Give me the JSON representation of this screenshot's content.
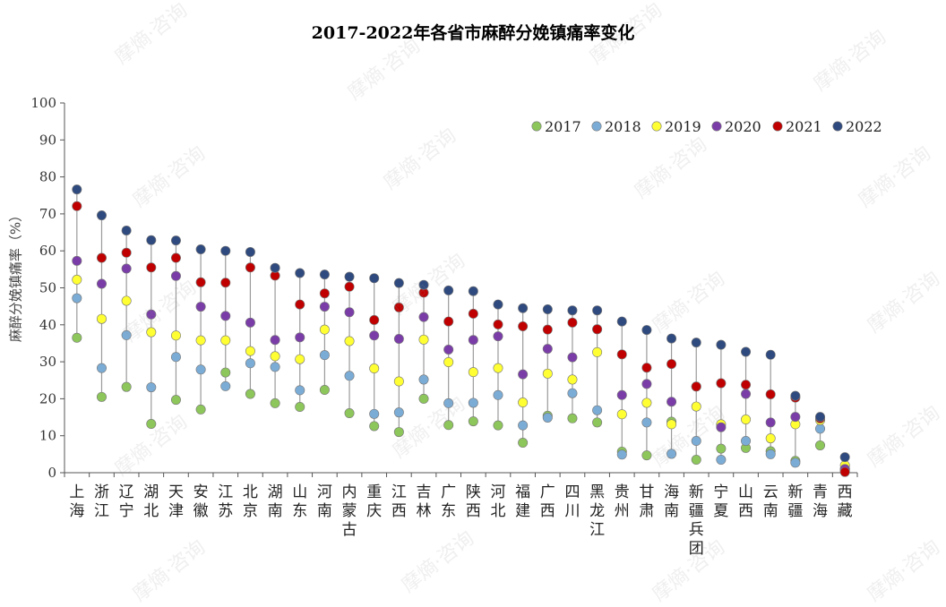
{
  "watermark": "摩熵·咨询",
  "chart_data": {
    "type": "scatter",
    "title": "2017-2022年各省市麻醉分娩镇痛率变化",
    "ylabel": "麻醉分娩镇痛率（%）",
    "ylim": [
      0,
      100
    ],
    "yticks": [
      0,
      10,
      20,
      30,
      40,
      50,
      60,
      70,
      80,
      90,
      100
    ],
    "grid": false,
    "legend_position": "top-right",
    "categories": [
      "上海",
      "浙江",
      "辽宁",
      "湖北",
      "天津",
      "安徽",
      "江苏",
      "北京",
      "湖南",
      "山东",
      "河南",
      "内蒙古",
      "重庆",
      "江西",
      "吉林",
      "广东",
      "陕西",
      "河北",
      "福建",
      "广西",
      "四川",
      "黑龙江",
      "贵州",
      "甘肃",
      "海南",
      "新疆兵团",
      "宁夏",
      "山西",
      "云南",
      "新疆",
      "青海",
      "西藏"
    ],
    "series": [
      {
        "name": "2017",
        "color": "#8dc65a",
        "values": [
          36.5,
          20.5,
          23.2,
          13.2,
          19.7,
          17.1,
          27.1,
          21.3,
          18.8,
          17.8,
          22.4,
          16.1,
          12.6,
          11.0,
          20.0,
          12.9,
          13.9,
          12.8,
          8.1,
          15.4,
          14.7,
          13.6,
          5.7,
          4.7,
          13.8,
          3.5,
          6.5,
          6.7,
          5.8,
          3.2,
          7.4,
          0.5
        ]
      },
      {
        "name": "2018",
        "color": "#7bacd6",
        "values": [
          47.2,
          28.3,
          37.2,
          23.1,
          31.3,
          27.9,
          23.4,
          29.6,
          28.6,
          22.3,
          31.8,
          26.2,
          15.9,
          16.3,
          25.2,
          18.8,
          18.9,
          21.0,
          12.8,
          14.9,
          21.5,
          16.9,
          4.9,
          13.6,
          5.1,
          8.6,
          3.5,
          8.6,
          5.0,
          2.7,
          11.9,
          1.0
        ]
      },
      {
        "name": "2019",
        "color": "#ffff33",
        "values": [
          52.2,
          41.6,
          46.5,
          38.0,
          37.1,
          35.8,
          35.8,
          32.9,
          31.5,
          30.7,
          38.7,
          35.6,
          28.2,
          24.7,
          36.0,
          29.9,
          27.2,
          28.3,
          19.0,
          26.8,
          25.2,
          32.6,
          15.8,
          18.9,
          13.1,
          17.9,
          13.1,
          14.4,
          9.3,
          13.1,
          14.2,
          2.0
        ]
      },
      {
        "name": "2020",
        "color": "#7a3da8",
        "values": [
          57.3,
          51.1,
          55.2,
          42.8,
          53.2,
          44.9,
          42.4,
          40.6,
          35.9,
          36.6,
          44.9,
          43.4,
          37.1,
          36.2,
          42.1,
          33.3,
          35.9,
          36.9,
          26.6,
          33.5,
          31.2,
          38.8,
          21.0,
          24.0,
          19.2,
          23.3,
          12.3,
          21.3,
          13.6,
          15.1,
          14.8,
          1.0
        ]
      },
      {
        "name": "2021",
        "color": "#c00000",
        "values": [
          72.1,
          58.1,
          59.5,
          55.5,
          58.1,
          51.5,
          51.4,
          55.5,
          53.3,
          45.5,
          48.5,
          50.3,
          41.3,
          44.7,
          48.7,
          40.9,
          43.0,
          40.1,
          39.6,
          38.7,
          40.6,
          38.8,
          32.0,
          28.4,
          29.4,
          23.3,
          24.2,
          23.8,
          21.2,
          20.3,
          14.7,
          0.2
        ]
      },
      {
        "name": "2022",
        "color": "#2f4a7e",
        "values": [
          76.6,
          69.6,
          65.5,
          62.9,
          62.8,
          60.4,
          60.0,
          59.7,
          55.4,
          54.0,
          53.6,
          53.0,
          52.6,
          51.3,
          50.8,
          49.3,
          49.1,
          45.5,
          44.5,
          44.2,
          43.9,
          43.9,
          40.9,
          38.6,
          36.3,
          35.2,
          34.6,
          32.7,
          31.9,
          20.8,
          15.1,
          4.2
        ]
      }
    ]
  }
}
